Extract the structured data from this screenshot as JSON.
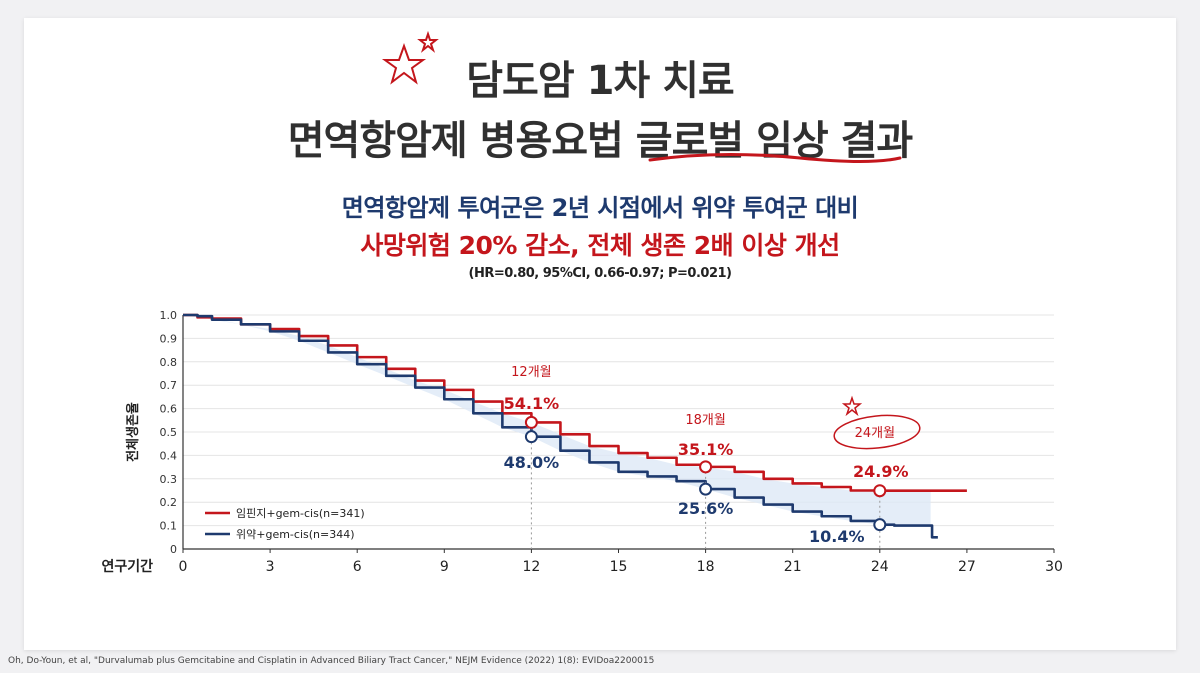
{
  "title": {
    "line1": "담도암 1차 치료",
    "line2": "면역항암제 병용요법 글로벌 임상 결과"
  },
  "subtitle": {
    "line1": "면역항암제 투여군은 2년 시점에서 위약 투여군 대비",
    "line2": "사망위험 20% 감소, 전체 생존 2배 이상 개선",
    "stats": "(HR=0.80, 95%CI, 0.66-0.97; P=0.021)"
  },
  "colors": {
    "treatment": "#c4161c",
    "placebo": "#1e3a6e",
    "band": "#dde8f6",
    "accent_red": "#c4161c"
  },
  "chart_data": {
    "type": "line",
    "title": "",
    "xlabel": "연구기간",
    "ylabel": "전체생존율",
    "xlim": [
      0,
      30
    ],
    "ylim": [
      0,
      1.0
    ],
    "xticks": [
      0,
      3,
      6,
      9,
      12,
      15,
      18,
      21,
      24,
      27,
      30
    ],
    "yticks": [
      "0",
      "0.1",
      "0.2",
      "0.3",
      "0.4",
      "0.5",
      "0.6",
      "0.7",
      "0.8",
      "0.9",
      "1.0"
    ],
    "series": [
      {
        "name": "임핀지+gem-cis(n=341)",
        "color": "#c4161c",
        "points": [
          [
            0,
            1.0
          ],
          [
            0.5,
            0.99
          ],
          [
            1,
            0.985
          ],
          [
            2,
            0.96
          ],
          [
            3,
            0.94
          ],
          [
            4,
            0.91
          ],
          [
            5,
            0.87
          ],
          [
            6,
            0.82
          ],
          [
            7,
            0.77
          ],
          [
            8,
            0.72
          ],
          [
            9,
            0.68
          ],
          [
            10,
            0.63
          ],
          [
            11,
            0.58
          ],
          [
            12,
            0.541
          ],
          [
            13,
            0.49
          ],
          [
            14,
            0.44
          ],
          [
            15,
            0.41
          ],
          [
            16,
            0.39
          ],
          [
            17,
            0.36
          ],
          [
            18,
            0.351
          ],
          [
            19,
            0.33
          ],
          [
            20,
            0.3
          ],
          [
            21,
            0.28
          ],
          [
            22,
            0.265
          ],
          [
            23,
            0.25
          ],
          [
            24,
            0.249
          ],
          [
            25,
            0.249
          ],
          [
            26,
            0.249
          ],
          [
            27,
            0.249
          ]
        ]
      },
      {
        "name": "위약+gem-cis(n=344)",
        "color": "#1e3a6e",
        "points": [
          [
            0,
            1.0
          ],
          [
            0.5,
            0.995
          ],
          [
            1,
            0.98
          ],
          [
            2,
            0.96
          ],
          [
            3,
            0.93
          ],
          [
            4,
            0.89
          ],
          [
            5,
            0.84
          ],
          [
            6,
            0.79
          ],
          [
            7,
            0.74
          ],
          [
            8,
            0.69
          ],
          [
            9,
            0.64
          ],
          [
            10,
            0.58
          ],
          [
            11,
            0.52
          ],
          [
            12,
            0.48
          ],
          [
            13,
            0.42
          ],
          [
            14,
            0.37
          ],
          [
            15,
            0.33
          ],
          [
            16,
            0.31
          ],
          [
            17,
            0.29
          ],
          [
            18,
            0.256
          ],
          [
            19,
            0.22
          ],
          [
            20,
            0.19
          ],
          [
            21,
            0.16
          ],
          [
            22,
            0.14
          ],
          [
            23,
            0.12
          ],
          [
            24,
            0.104
          ],
          [
            24.5,
            0.1
          ],
          [
            25,
            0.1
          ],
          [
            25.8,
            0.1
          ],
          [
            25.8,
            0.05
          ],
          [
            26,
            0.05
          ]
        ]
      }
    ],
    "annotations": [
      {
        "time_label": "12개월",
        "x": 12,
        "treatment": 0.541,
        "placebo": 0.48,
        "treatment_label": "54.1%",
        "placebo_label": "48.0%"
      },
      {
        "time_label": "18개월",
        "x": 18,
        "treatment": 0.351,
        "placebo": 0.256,
        "treatment_label": "35.1%",
        "placebo_label": "25.6%"
      },
      {
        "time_label": "24개월",
        "x": 24,
        "treatment": 0.249,
        "placebo": 0.104,
        "treatment_label": "24.9%",
        "placebo_label": "10.4%"
      }
    ],
    "legend": [
      {
        "label": "임핀지+gem-cis(n=341)",
        "color": "#c4161c"
      },
      {
        "label": "위약+gem-cis(n=344)",
        "color": "#1e3a6e"
      }
    ],
    "legend_position": "bottom-left"
  },
  "citation": "Oh, Do-Youn, et al, \"Durvalumab plus Gemcitabine and Cisplatin in Advanced Biliary Tract Cancer,\" NEJM Evidence (2022) 1(8): EVIDoa2200015"
}
